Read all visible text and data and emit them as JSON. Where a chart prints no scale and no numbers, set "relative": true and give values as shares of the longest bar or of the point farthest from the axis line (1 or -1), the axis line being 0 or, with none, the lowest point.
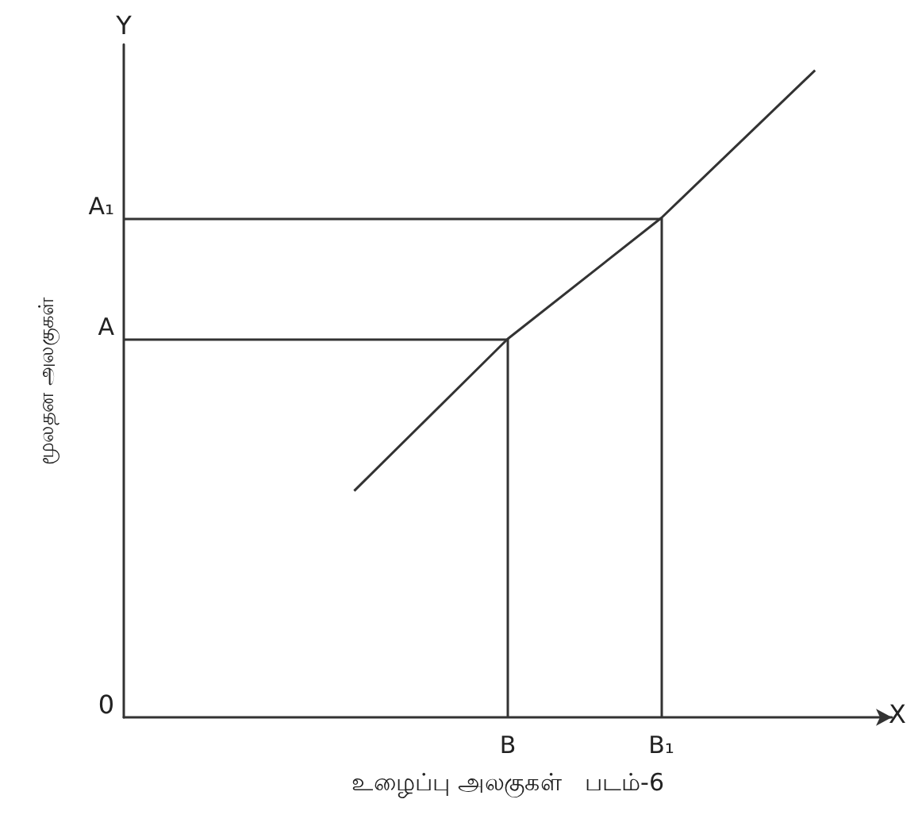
{
  "chart_data": {
    "type": "line",
    "relative": true,
    "xlabel": "உழைப்பு அலகுகள்",
    "ylabel": "மூலதன அலகுகள்",
    "categories": [
      null,
      null,
      "B",
      "B₁",
      null
    ],
    "series": [
      {
        "color": "#333333",
        "values": [
          null,
          0.35,
          0.585,
          0.772,
          1
        ]
      }
    ],
    "annotations": [
      "A",
      "A₁",
      "0",
      "X",
      "Y",
      "படம்-6"
    ],
    "grid": "x"
  }
}
